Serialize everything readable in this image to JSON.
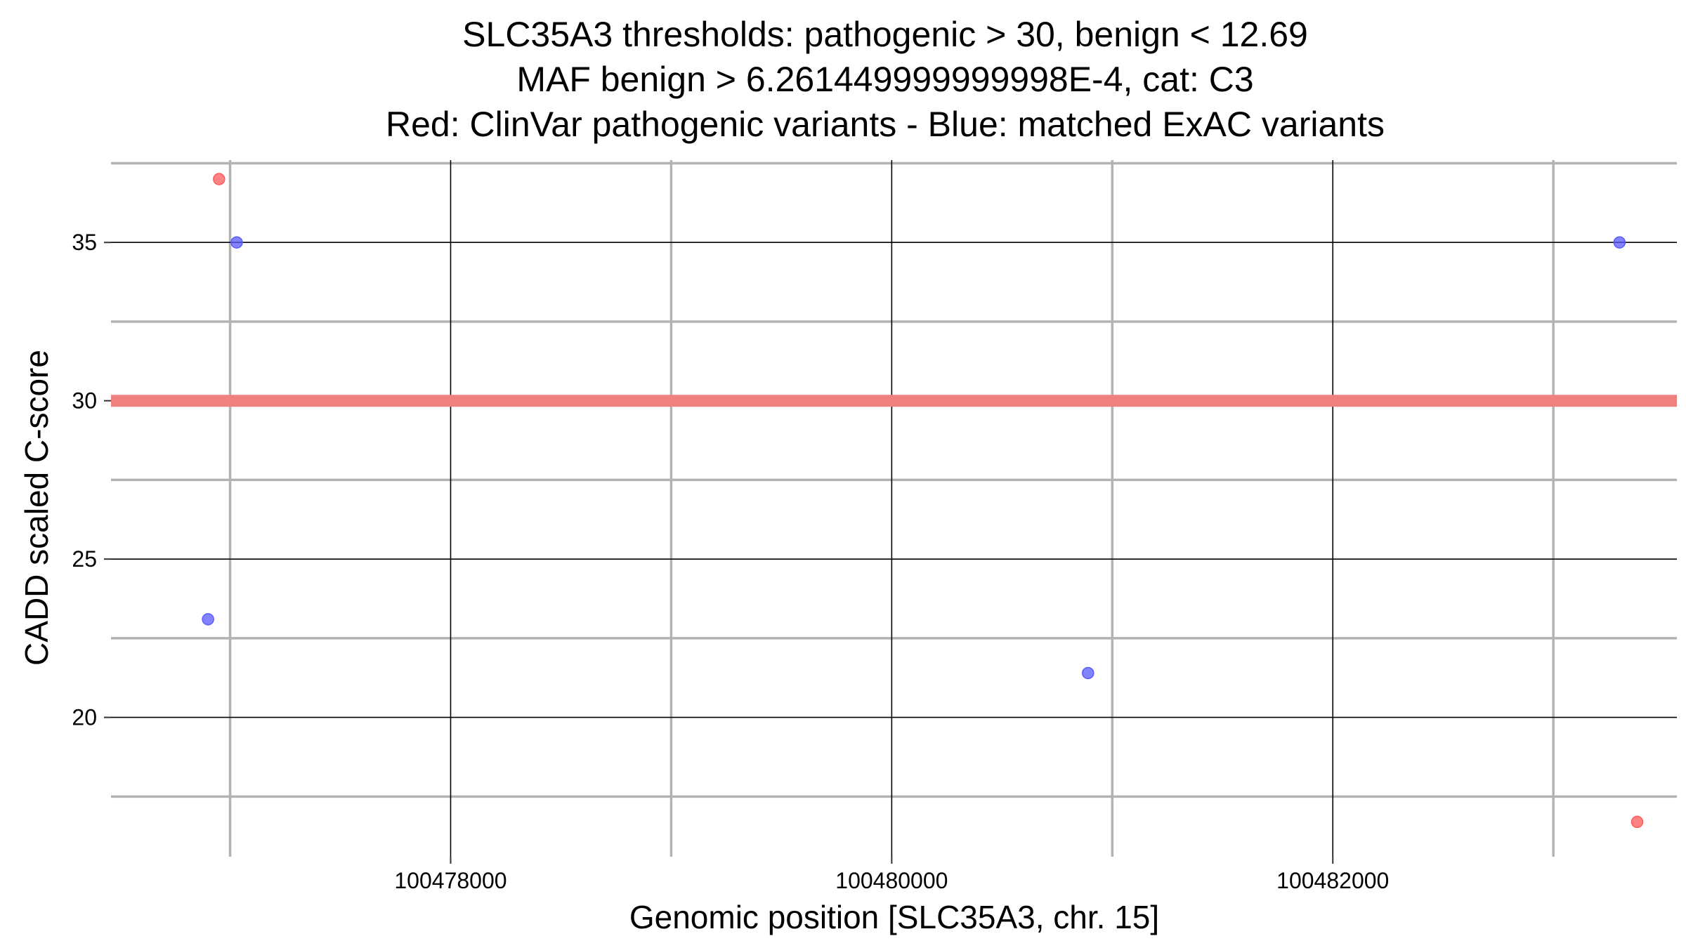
{
  "chart_data": {
    "type": "scatter",
    "title_lines": [
      "SLC35A3 thresholds: pathogenic > 30, benign < 12.69",
      "MAF benign > 6.261449999999998E-4, cat: C3",
      "Red: ClinVar pathogenic variants - Blue: matched ExAC variants"
    ],
    "xlabel": "Genomic position [SLC35A3, chr. 15]",
    "ylabel": "CADD scaled C-score",
    "xlim": [
      100476460,
      100483560
    ],
    "ylim": [
      15.6,
      37.6
    ],
    "x_major_ticks": [
      100478000,
      100480000,
      100482000
    ],
    "x_tick_labels": [
      "100478000",
      "100480000",
      "100482000"
    ],
    "x_minor_ticks": [
      100477000,
      100479000,
      100481000,
      100483000
    ],
    "y_major_ticks": [
      20,
      25,
      30,
      35
    ],
    "y_tick_labels": [
      "20",
      "25",
      "30",
      "35"
    ],
    "y_minor_ticks": [
      17.5,
      22.5,
      27.5,
      32.5,
      37.5
    ],
    "threshold_line": {
      "y": 30,
      "color": "#f08080"
    },
    "series": [
      {
        "name": "ClinVar pathogenic variants",
        "color": "#ff5a5a",
        "points": [
          {
            "x": 100476950,
            "y": 37.0
          },
          {
            "x": 100483380,
            "y": 16.7
          }
        ]
      },
      {
        "name": "matched ExAC variants",
        "color": "#5a5aff",
        "points": [
          {
            "x": 100477030,
            "y": 35.0
          },
          {
            "x": 100476900,
            "y": 23.1
          },
          {
            "x": 100480890,
            "y": 21.4
          },
          {
            "x": 100483300,
            "y": 35.0
          }
        ]
      }
    ]
  }
}
